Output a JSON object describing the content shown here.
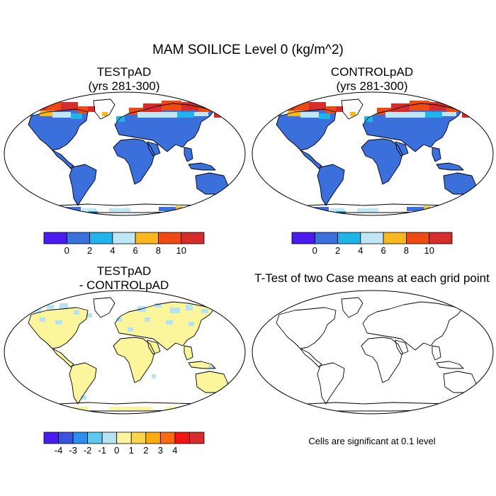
{
  "main_title": "MAM SOILICE Level 0 (kg/m^2)",
  "panels": {
    "top_left": {
      "title_line1": "TESTpAD",
      "title_line2": "(yrs 281-300)"
    },
    "top_right": {
      "title_line1": "CONTROLpAD",
      "title_line2": "(yrs 281-300)"
    },
    "bottom_left": {
      "title_line1": "TESTpAD",
      "title_line2": "- CONTROLpAD"
    },
    "bottom_right": {
      "title_line1": "T-Test of two Case means at each grid point"
    }
  },
  "colorbar_abs": {
    "colors": [
      "#4a1af0",
      "#3a6fdc",
      "#1fb5ea",
      "#bfe6f4",
      "#fab81e",
      "#f04a14",
      "#d62c2c"
    ],
    "labels": [
      "0",
      "2",
      "4",
      "6",
      "8",
      "10"
    ]
  },
  "colorbar_diff": {
    "colors": [
      "#4a1af0",
      "#3a54e0",
      "#2f8cf0",
      "#5fc8ee",
      "#b7e2f2",
      "#fbf59c",
      "#fad44a",
      "#fbab10",
      "#fa6a10",
      "#f21414",
      "#d62c2c"
    ],
    "labels": [
      "-4",
      "-3",
      "-2",
      "-1",
      "0",
      "1",
      "2",
      "3",
      "4"
    ]
  },
  "significance_note": "Cells are significant at 0.1 level"
}
